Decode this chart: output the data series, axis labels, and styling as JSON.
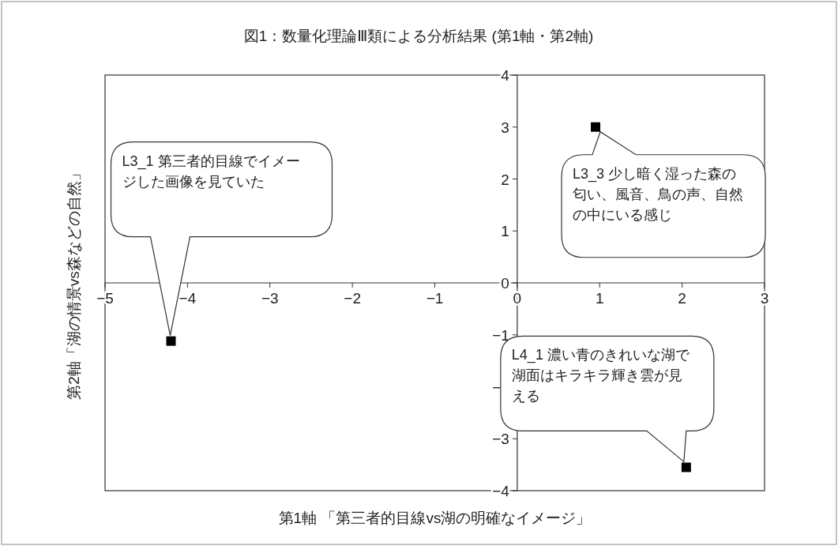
{
  "chart_data": {
    "type": "scatter",
    "title": "図1：数量化理論Ⅲ類による分析結果 (第1軸・第2軸)",
    "xlabel": "第1軸 「第三者的目線vs湖の明確なイメージ」",
    "ylabel": "第2軸「湖の情景vs森などの自然」",
    "x": [
      -4.2,
      0.95,
      2.05
    ],
    "series": [
      {
        "color": "#000000",
        "values": [
          -1.12,
          3.0,
          -3.55
        ]
      }
    ],
    "marker": "square",
    "grid": false,
    "xlim": [
      -5,
      3
    ],
    "xticks": [
      -5,
      -4,
      -3,
      -2,
      -1,
      0,
      1,
      2,
      3
    ],
    "ylim": [
      -4,
      4
    ],
    "yticks": [
      -4,
      -3,
      -2,
      -1,
      0,
      1,
      2,
      3,
      4
    ],
    "annotations": [
      "L3_1 第三者的目線でイメージした画像を見ていた",
      {
        "text": "L3_3 少し暗く湿った森の匂い、風音、鳥の声、自然の中にいる感じ",
        "x": 0.95,
        "y": 3.0
      },
      "L4_1 濃い青のきれいな湖で湖面はキラキラ輝き雲が見える"
    ]
  }
}
